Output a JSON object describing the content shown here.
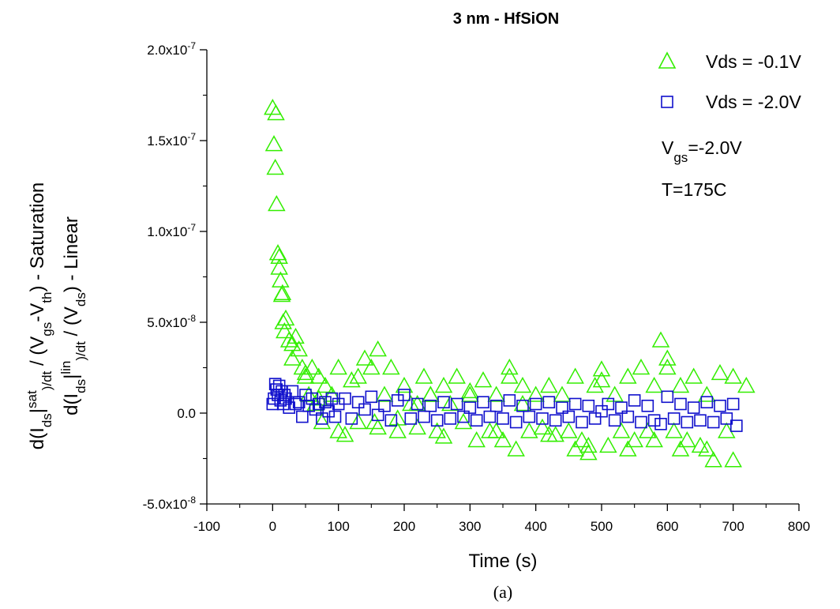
{
  "chart_data": {
    "type": "scatter",
    "title": "3 nm - HfSiON",
    "xlabel": "Time (s)",
    "ylabel_line1": "d(Ids|sat)/dt / (Vgs-Vth) - Saturation",
    "ylabel_line2": "d(Ids|lin)/dt / (Vds) - Linear",
    "xlim": [
      -100,
      800
    ],
    "ylim": [
      -5e-08,
      2e-07
    ],
    "x_ticks": [
      -100,
      0,
      100,
      200,
      300,
      400,
      500,
      600,
      700,
      800
    ],
    "x_tick_labels": [
      "-100",
      "0",
      "100",
      "200",
      "300",
      "400",
      "500",
      "600",
      "700",
      "800"
    ],
    "y_ticks": [
      -5e-08,
      0,
      5e-08,
      1e-07,
      1.5e-07,
      2e-07
    ],
    "y_tick_labels": [
      {
        "mantissa": "-5.0x10",
        "exp": "-8"
      },
      {
        "mantissa": "0.0",
        "exp": ""
      },
      {
        "mantissa": "5.0x10",
        "exp": "-8"
      },
      {
        "mantissa": "1.0x10",
        "exp": "-7"
      },
      {
        "mantissa": "1.5x10",
        "exp": "-7"
      },
      {
        "mantissa": "2.0x10",
        "exp": "-7"
      }
    ],
    "grid": false,
    "legend_position": "top-right",
    "annotations": [
      "Vgs=-2.0V",
      "T=175C"
    ],
    "series": [
      {
        "name": "Vds = -0.1V",
        "marker": "triangle-open",
        "color": "#33ee00",
        "x": [
          0,
          2,
          4,
          6,
          8,
          10,
          12,
          14,
          16,
          18,
          20,
          25,
          30,
          35,
          40,
          45,
          50,
          55,
          60,
          65,
          70,
          75,
          80,
          90,
          100,
          110,
          120,
          130,
          140,
          150,
          155,
          160,
          170,
          180,
          190,
          200,
          210,
          220,
          230,
          240,
          250,
          260,
          270,
          280,
          290,
          300,
          310,
          320,
          330,
          340,
          350,
          360,
          370,
          380,
          390,
          400,
          410,
          420,
          430,
          440,
          450,
          460,
          470,
          480,
          490,
          500,
          510,
          520,
          530,
          540,
          550,
          560,
          570,
          580,
          590,
          600,
          610,
          620,
          630,
          640,
          650,
          660,
          670,
          680,
          690,
          700,
          5,
          10,
          15,
          30,
          50,
          70,
          100,
          130,
          160,
          190,
          220,
          260,
          300,
          340,
          380,
          420,
          460,
          500,
          540,
          580,
          620,
          660,
          700,
          240,
          360,
          480,
          600,
          720
        ],
        "y": [
          1.68e-07,
          1.48e-07,
          1.35e-07,
          1.15e-07,
          8.8e-08,
          8e-08,
          7.3e-08,
          6.5e-08,
          5e-08,
          4.5e-08,
          5.2e-08,
          4e-08,
          3e-08,
          4.2e-08,
          3.5e-08,
          2.5e-08,
          2e-08,
          1e-08,
          2.5e-08,
          5e-09,
          2e-08,
          -5e-09,
          1.5e-08,
          1e-08,
          2.5e-08,
          -1.2e-08,
          1.8e-08,
          2e-08,
          3e-08,
          2.5e-08,
          -5e-09,
          3.5e-08,
          1e-08,
          2.5e-08,
          -3e-09,
          1.5e-08,
          5e-09,
          -8e-09,
          2e-08,
          1e-08,
          -1e-08,
          1.5e-08,
          5e-09,
          2e-08,
          -5e-09,
          1e-08,
          -1.5e-08,
          1.8e-08,
          -1e-08,
          1e-08,
          -1.5e-08,
          2e-08,
          -2e-08,
          1.5e-08,
          -1e-08,
          1e-08,
          -8e-09,
          1.5e-08,
          -1.2e-08,
          1e-08,
          -1e-08,
          2e-08,
          -1.5e-08,
          -2.2e-08,
          1.5e-08,
          2.4e-08,
          -1.8e-08,
          1e-08,
          -1e-08,
          2e-08,
          -1.5e-08,
          2.5e-08,
          -1e-08,
          1.5e-08,
          4e-08,
          3e-08,
          -1e-08,
          1.5e-08,
          -1.5e-08,
          2e-08,
          -1.8e-08,
          1e-08,
          -2.6e-08,
          2.2e-08,
          -1e-08,
          2e-08,
          1.65e-07,
          8.6e-08,
          6.6e-08,
          3.8e-08,
          2.2e-08,
          8e-09,
          -1e-08,
          -5e-09,
          -8e-09,
          -1e-08,
          5e-09,
          -1.3e-08,
          1.2e-08,
          -1e-08,
          5e-09,
          -1.2e-08,
          -2e-08,
          1.8e-08,
          -2e-08,
          -1.5e-08,
          -2e-08,
          -2e-08,
          -2.6e-08,
          1e-08,
          2.5e-08,
          -1.8e-08,
          2.5e-08,
          1.5e-08
        ]
      },
      {
        "name": "Vds = -2.0V",
        "marker": "square-open",
        "color": "#1010cc",
        "x": [
          0,
          2,
          4,
          6,
          8,
          10,
          12,
          14,
          16,
          18,
          20,
          25,
          30,
          35,
          40,
          45,
          50,
          55,
          60,
          65,
          70,
          75,
          80,
          85,
          90,
          95,
          100,
          110,
          120,
          130,
          140,
          150,
          160,
          170,
          180,
          190,
          200,
          210,
          220,
          230,
          240,
          250,
          260,
          270,
          280,
          290,
          300,
          310,
          320,
          330,
          340,
          350,
          360,
          370,
          380,
          390,
          400,
          410,
          420,
          430,
          440,
          450,
          460,
          470,
          480,
          490,
          500,
          510,
          520,
          530,
          540,
          550,
          560,
          570,
          580,
          590,
          600,
          610,
          620,
          630,
          640,
          650,
          660,
          670,
          680,
          690,
          700,
          705
        ],
        "y": [
          5e-09,
          8e-09,
          1.6e-08,
          1.3e-08,
          1e-08,
          1.5e-08,
          7e-09,
          1.2e-08,
          5e-09,
          1e-08,
          8e-09,
          3e-09,
          1.2e-08,
          5e-09,
          6e-09,
          -2e-09,
          1e-08,
          4e-09,
          8e-09,
          2e-09,
          5e-09,
          -3e-09,
          6e-09,
          1e-09,
          8e-09,
          -2e-09,
          5e-09,
          8e-09,
          -3e-09,
          6e-09,
          2e-09,
          9e-09,
          -1e-09,
          4e-09,
          -4e-09,
          7e-09,
          1e-08,
          -3e-09,
          5e-09,
          -2e-09,
          4e-09,
          -4e-09,
          6e-09,
          -3e-09,
          5e-09,
          -2e-09,
          3e-09,
          -4e-09,
          6e-09,
          -2e-09,
          4e-09,
          -3e-09,
          7e-09,
          -5e-09,
          4e-09,
          -2e-09,
          5e-09,
          -3e-09,
          6e-09,
          -4e-09,
          3e-09,
          -2e-09,
          5e-09,
          -5e-09,
          4e-09,
          -3e-09,
          1e-09,
          5e-09,
          -4e-09,
          3e-09,
          -2e-09,
          7e-09,
          -5e-09,
          4e-09,
          -4e-09,
          -6e-09,
          9e-09,
          -3e-09,
          5e-09,
          -5e-09,
          3e-09,
          -4e-09,
          6e-09,
          -5e-09,
          4e-09,
          -3e-09,
          5e-09,
          -7e-09
        ]
      }
    ]
  },
  "caption": "(a)"
}
